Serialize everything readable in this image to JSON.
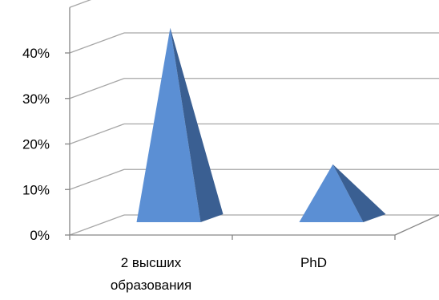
{
  "chart_data": {
    "type": "bar",
    "style": "3d-pyramid",
    "categories": [
      [
        "2 высших",
        "образования"
      ],
      [
        "PhD"
      ]
    ],
    "series": [
      {
        "values": [
          42,
          12
        ]
      }
    ],
    "y_ticks": [
      "0%",
      "10%",
      "20%",
      "30%",
      "40%"
    ],
    "ylim": [
      0,
      40
    ],
    "grid": true,
    "legend": "none",
    "colors": {
      "front": "#5b8fd4",
      "side": "#3a5f92",
      "grid": "#a6a6a6",
      "axis": "#868686"
    }
  }
}
